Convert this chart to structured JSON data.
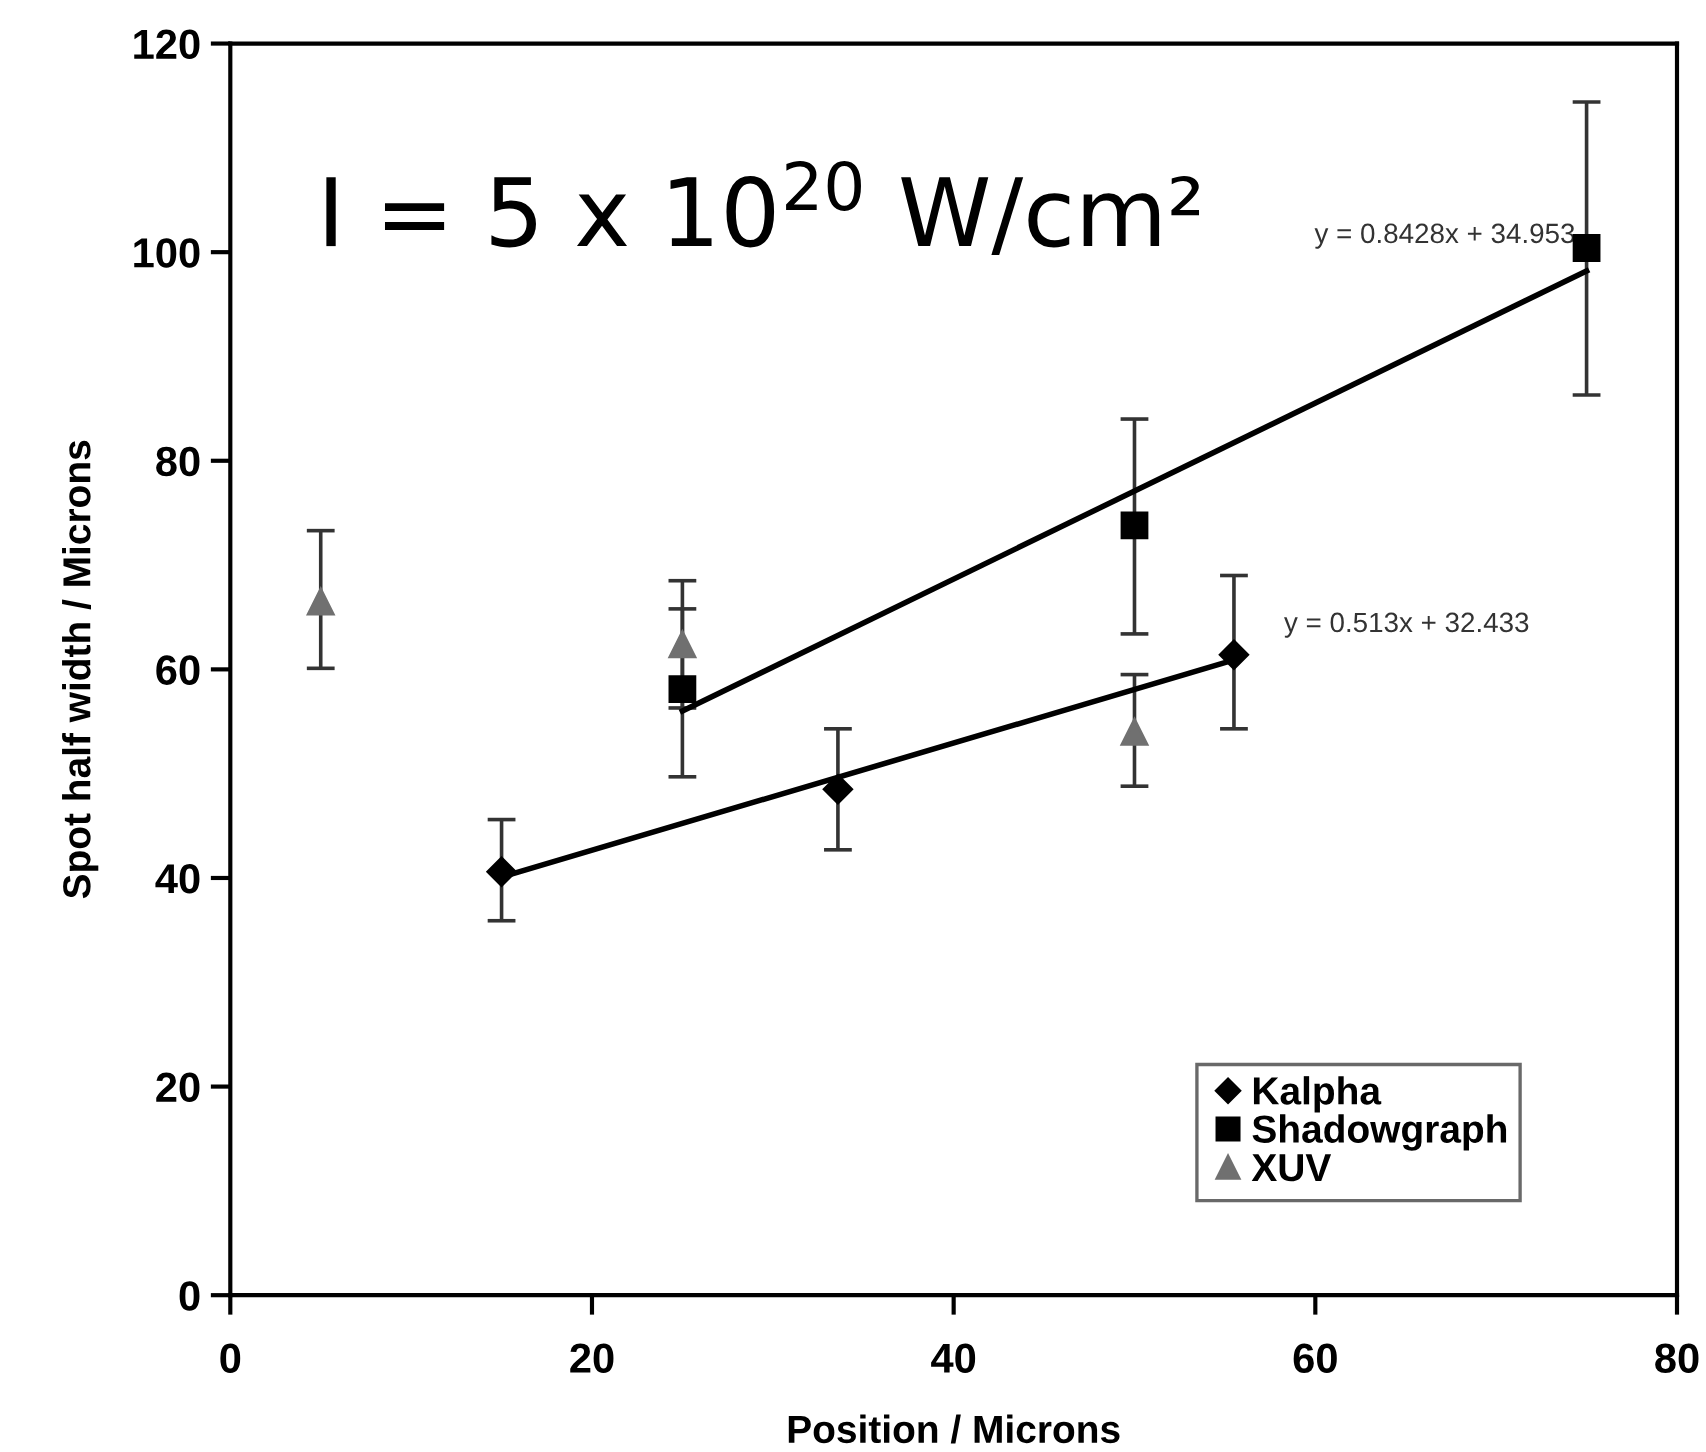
{
  "chart_data": {
    "type": "scatter",
    "xlabel": "Position / Microns",
    "ylabel": "Spot half width / Microns",
    "xlim": [
      0,
      80
    ],
    "xticks": [
      0,
      20,
      40,
      60,
      80
    ],
    "ylim": [
      0,
      120
    ],
    "yticks": [
      0,
      20,
      40,
      60,
      80,
      100,
      120
    ],
    "grid": false,
    "legend": "bottom right",
    "series": [
      {
        "name": "Kalpha",
        "color": "#000000",
        "marker": "diamond",
        "x": [
          15,
          33.6,
          55.5
        ],
        "values": [
          40.6,
          48.5,
          61.4
        ],
        "errors": [
          [
            35.9,
            45.6
          ],
          [
            42.7,
            54.3
          ],
          [
            54.3,
            69.0
          ]
        ]
      },
      {
        "name": "Shadowgraph",
        "color": "#000000",
        "marker": "square",
        "x": [
          25,
          50,
          75
        ],
        "values": [
          58.1,
          73.8,
          100.4
        ],
        "errors": [
          [
            49.7,
            65.8
          ],
          [
            63.4,
            84.0
          ],
          [
            86.3,
            114.4
          ]
        ]
      },
      {
        "name": "XUV",
        "color": "#707070",
        "marker": "triangle",
        "x": [
          5,
          25,
          50
        ],
        "values": [
          66.5,
          62.4,
          54.0
        ],
        "errors": [
          [
            60.1,
            73.3
          ],
          [
            56.3,
            68.5
          ],
          [
            48.8,
            59.5
          ]
        ]
      },
      {
        "type": "line",
        "color": "#000000",
        "marker": "none",
        "line_style": "solid",
        "x": [
          15,
          55.5
        ],
        "values": [
          40.1,
          60.9
        ]
      },
      {
        "type": "line",
        "color": "#000000",
        "marker": "none",
        "line_style": "solid",
        "x": [
          25,
          75
        ],
        "values": [
          56.0,
          98.2
        ]
      }
    ],
    "annotations": [
      "I = 5 x 10$^{20}$ W/cm²",
      {
        "text": "y = 0.8428x + 34.953",
        "x": 75,
        "y": 98.2
      },
      {
        "text": "y = 0.513x + 32.433",
        "x": 55.5,
        "y": 60.9
      }
    ]
  }
}
